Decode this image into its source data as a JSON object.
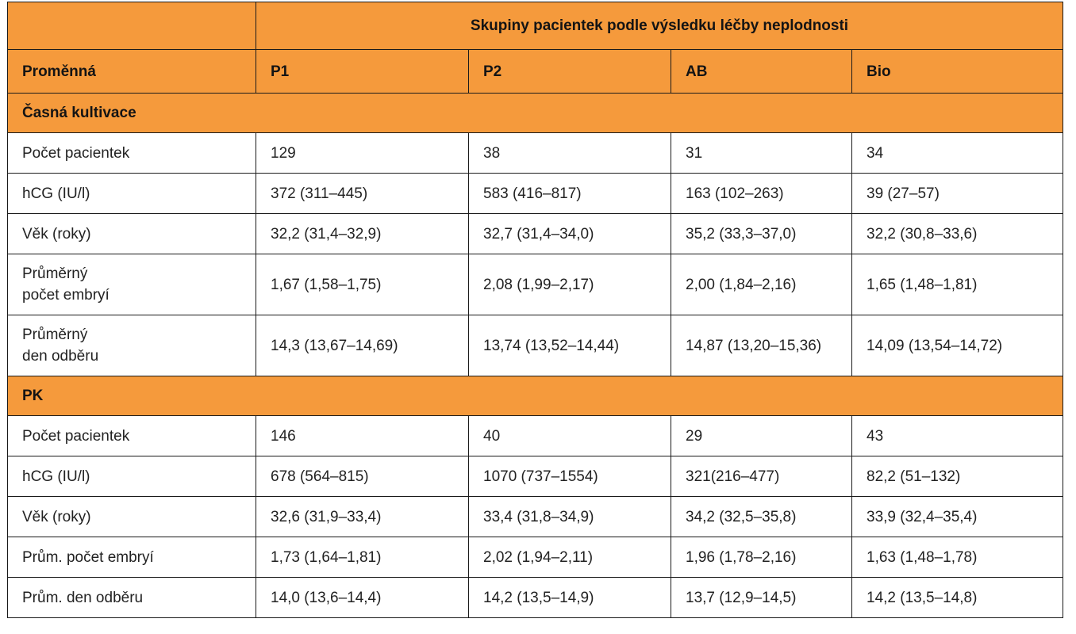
{
  "table": {
    "super_header": "Skupiny pacientek podle výsledku léčby neplodnosti",
    "columns": [
      "Proměnná",
      "P1",
      "P2",
      "AB",
      "Bio"
    ],
    "sections": [
      {
        "title": "Časná kultivace",
        "rows": [
          {
            "label": [
              "Počet pacientek"
            ],
            "values": [
              "129",
              "38",
              "31",
              "34"
            ]
          },
          {
            "label": [
              "hCG (IU/l)"
            ],
            "values": [
              "372 (311–445)",
              "583 (416–817)",
              "163 (102–263)",
              "39 (27–57)"
            ]
          },
          {
            "label": [
              "Věk (roky)"
            ],
            "values": [
              "32,2 (31,4–32,9)",
              "32,7 (31,4–34,0)",
              "35,2 (33,3–37,0)",
              "32,2 (30,8–33,6)"
            ]
          },
          {
            "label": [
              "Průměrný",
              "počet embryí"
            ],
            "values": [
              "1,67 (1,58–1,75)",
              "2,08 (1,99–2,17)",
              "2,00 (1,84–2,16)",
              "1,65 (1,48–1,81)"
            ]
          },
          {
            "label": [
              "Průměrný",
              "den odběru"
            ],
            "values": [
              "14,3 (13,67–14,69)",
              "13,74 (13,52–14,44)",
              "14,87 (13,20–15,36)",
              "14,09 (13,54–14,72)"
            ]
          }
        ]
      },
      {
        "title": "PK",
        "rows": [
          {
            "label": [
              "Počet pacientek"
            ],
            "values": [
              "146",
              "40",
              "29",
              "43"
            ]
          },
          {
            "label": [
              "hCG (IU/l)"
            ],
            "values": [
              "678 (564–815)",
              "1070 (737–1554)",
              "321(216–477)",
              "82,2 (51–132)"
            ]
          },
          {
            "label": [
              "Věk (roky)"
            ],
            "values": [
              "32,6 (31,9–33,4)",
              "33,4 (31,8–34,9)",
              "34,2 (32,5–35,8)",
              "33,9 (32,4–35,4)"
            ]
          },
          {
            "label": [
              "Prům. počet embryí"
            ],
            "values": [
              "1,73 (1,64–1,81)",
              "2,02 (1,94–2,11)",
              "1,96 (1,78–2,16)",
              "1,63 (1,48–1,78)"
            ]
          },
          {
            "label": [
              "Prům. den odběru"
            ],
            "values": [
              "14,0 (13,6–14,4)",
              "14,2 (13,5–14,9)",
              "13,7 (12,9–14,5)",
              "14,2 (13,5–14,8)"
            ]
          }
        ]
      }
    ]
  },
  "colors": {
    "header_fill": "#f59a3c",
    "border": "#1a1a1a",
    "text": "#222222"
  }
}
